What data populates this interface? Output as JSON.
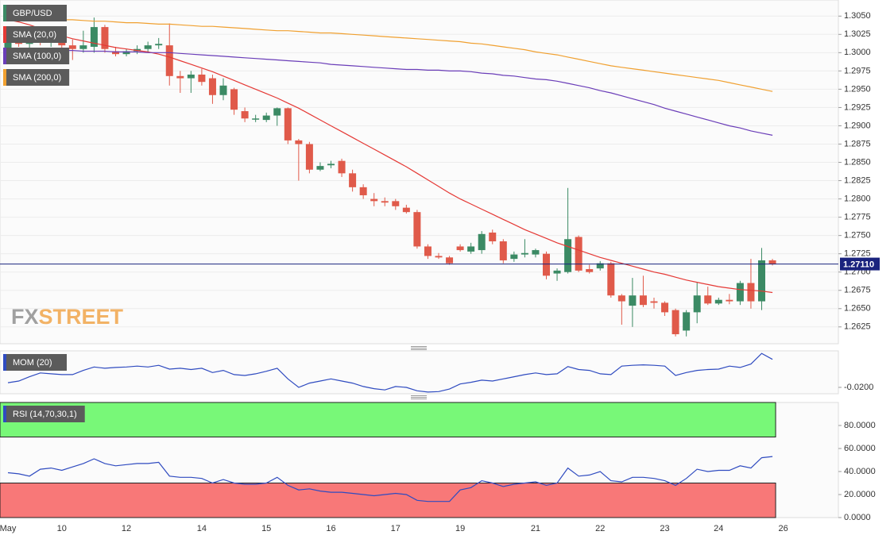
{
  "logo": {
    "fx": "FX",
    "street": "STREET"
  },
  "chart_data": [
    {
      "type": "candlestick",
      "categories": [
        "May",
        null,
        null,
        null,
        null,
        "10",
        null,
        null,
        null,
        null,
        null,
        "12",
        null,
        null,
        null,
        null,
        null,
        null,
        "14",
        null,
        null,
        null,
        null,
        null,
        "15",
        null,
        null,
        null,
        null,
        null,
        "16",
        null,
        null,
        null,
        null,
        null,
        "17",
        null,
        null,
        null,
        null,
        null,
        "19",
        null,
        null,
        null,
        null,
        null,
        null,
        "21",
        null,
        null,
        null,
        null,
        null,
        "22",
        null,
        null,
        null,
        null,
        null,
        "23",
        null,
        null,
        null,
        null,
        "24",
        null,
        null,
        null,
        null,
        null,
        "26"
      ],
      "series": [
        {
          "name": "GBP/USD",
          "up_color": "#3b8a64",
          "down_color": "#e05a4a",
          "open": [
            1.3005,
            1.3018,
            1.3012,
            1.302,
            1.3015,
            1.3022,
            1.301,
            1.3005,
            1.3008,
            1.3035,
            1.3002,
            1.2998,
            1.3002,
            1.3005,
            1.301,
            1.301,
            1.2968,
            1.2965,
            1.297,
            1.2965,
            1.2942,
            1.295,
            1.292,
            1.291,
            1.2908,
            1.2914,
            1.2924,
            1.288,
            1.2875,
            1.284,
            1.2846,
            1.2852,
            1.2835,
            1.2816,
            1.28,
            1.2797,
            1.2797,
            1.2788,
            1.2782,
            1.2735,
            1.2722,
            1.272,
            1.2735,
            1.2728,
            1.273,
            1.2754,
            1.2742,
            1.2718,
            1.2724,
            1.2724,
            1.2725,
            1.2698,
            1.27,
            1.2748,
            1.2704,
            1.2705,
            1.2712,
            1.2668,
            1.2654,
            1.2668,
            1.266,
            1.2658,
            1.2648,
            1.262,
            1.2645,
            1.2668,
            1.2657,
            1.2662,
            1.266,
            1.2685,
            1.266,
            1.2716,
            null
          ],
          "high": [
            1.3022,
            1.303,
            1.3025,
            1.3028,
            1.303,
            1.3028,
            1.3018,
            1.303,
            1.3048,
            1.3038,
            1.3008,
            1.3005,
            1.301,
            1.3015,
            1.302,
            1.304,
            1.2975,
            1.2975,
            1.2978,
            1.297,
            1.2965,
            1.2952,
            1.2925,
            1.2915,
            1.2918,
            1.2925,
            1.2925,
            1.2882,
            1.2878,
            1.285,
            1.2852,
            1.2855,
            1.284,
            1.282,
            1.2808,
            1.2802,
            1.28,
            1.2792,
            1.2785,
            1.2738,
            1.2726,
            1.2722,
            1.2738,
            1.274,
            1.2756,
            1.2758,
            1.2745,
            1.2728,
            1.2745,
            1.2732,
            1.2728,
            1.2705,
            1.2815,
            1.275,
            1.271,
            1.2715,
            1.2714,
            1.267,
            1.2692,
            1.2695,
            1.2665,
            1.266,
            1.265,
            1.2648,
            1.2686,
            1.268,
            1.2665,
            1.267,
            1.2688,
            1.2718,
            1.2733,
            1.2718,
            null
          ],
          "low": [
            1.3,
            1.3008,
            1.3005,
            1.301,
            1.3008,
            1.3,
            1.299,
            1.3,
            1.3,
            1.3,
            1.2995,
            1.2995,
            1.2998,
            1.3,
            1.3005,
            1.2955,
            1.2945,
            1.2945,
            1.2955,
            1.293,
            1.2935,
            1.2915,
            1.2905,
            1.2905,
            1.2905,
            1.29,
            1.2875,
            1.2825,
            1.2835,
            1.2838,
            1.2842,
            1.283,
            1.281,
            1.28,
            1.279,
            1.279,
            1.2785,
            1.278,
            1.2732,
            1.2718,
            1.2718,
            1.271,
            1.2728,
            1.2725,
            1.2725,
            1.2738,
            1.2712,
            1.2714,
            1.272,
            1.272,
            1.269,
            1.2688,
            1.2698,
            1.27,
            1.2698,
            1.2702,
            1.2665,
            1.2628,
            1.2625,
            1.2652,
            1.265,
            1.264,
            1.2612,
            1.2612,
            1.263,
            1.2655,
            1.2655,
            1.2656,
            1.2655,
            1.265,
            1.2648,
            1.2709,
            null
          ],
          "close": [
            1.3018,
            1.3012,
            1.302,
            1.3015,
            1.3022,
            1.301,
            1.3005,
            1.301,
            1.3035,
            1.3005,
            1.2998,
            1.3002,
            1.3005,
            1.301,
            1.3012,
            1.2968,
            1.2965,
            1.297,
            1.296,
            1.2942,
            1.2955,
            1.2922,
            1.291,
            1.291,
            1.2914,
            1.2924,
            1.288,
            1.2875,
            1.284,
            1.2845,
            1.2848,
            1.2835,
            1.2816,
            1.2805,
            1.2797,
            1.2795,
            1.279,
            1.2782,
            1.2735,
            1.2722,
            1.272,
            1.2712,
            1.273,
            1.2735,
            1.2752,
            1.2742,
            1.2716,
            1.2724,
            1.2726,
            1.273,
            1.2695,
            1.2702,
            1.2745,
            1.2702,
            1.27,
            1.2712,
            1.2668,
            1.266,
            1.2668,
            1.2655,
            1.2658,
            1.2645,
            1.2615,
            1.2645,
            1.2668,
            1.2657,
            1.2662,
            1.266,
            1.2685,
            1.266,
            1.2716,
            1.2711,
            null
          ]
        },
        {
          "name": "SMA (20,0)",
          "color": "#e53935",
          "values": [
            1.3045,
            1.3042,
            1.3038,
            1.3033,
            1.3028,
            1.3023,
            1.3019,
            1.3016,
            1.3013,
            1.301,
            1.3007,
            1.3005,
            1.3003,
            1.3001,
            1.2998,
            1.2994,
            1.2989,
            1.2984,
            1.2979,
            1.2974,
            1.2968,
            1.2962,
            1.2956,
            1.295,
            1.2944,
            1.2938,
            1.2931,
            1.2924,
            1.2916,
            1.2908,
            1.29,
            1.2892,
            1.2884,
            1.2876,
            1.2868,
            1.286,
            1.2852,
            1.2844,
            1.2835,
            1.2826,
            1.2817,
            1.2808,
            1.28,
            1.2793,
            1.2786,
            1.2779,
            1.2772,
            1.2765,
            1.2758,
            1.2752,
            1.2746,
            1.274,
            1.2735,
            1.273,
            1.2725,
            1.272,
            1.2716,
            1.2712,
            1.2708,
            1.2704,
            1.27,
            1.2697,
            1.2693,
            1.2689,
            1.2686,
            1.2683,
            1.268,
            1.2678,
            1.2676,
            1.2675,
            1.2674,
            1.2672,
            null
          ]
        },
        {
          "name": "SMA (100,0)",
          "color": "#6a3db8",
          "values": [
            1.3004,
            1.3004,
            1.3004,
            1.3004,
            1.3003,
            1.3003,
            1.3003,
            1.3002,
            1.3002,
            1.3002,
            1.3001,
            1.3001,
            1.3001,
            1.3,
            1.3,
            1.3,
            1.2999,
            1.2998,
            1.2997,
            1.2996,
            1.2995,
            1.2994,
            1.2993,
            1.2992,
            1.2991,
            1.299,
            1.2989,
            1.2988,
            1.2987,
            1.2986,
            1.2984,
            1.2983,
            1.2982,
            1.2981,
            1.298,
            1.2979,
            1.2978,
            1.2977,
            1.2977,
            1.2976,
            1.2976,
            1.2975,
            1.2975,
            1.2974,
            1.2972,
            1.2971,
            1.2969,
            1.2968,
            1.2966,
            1.2964,
            1.2963,
            1.2961,
            1.2958,
            1.2955,
            1.2952,
            1.2948,
            1.2945,
            1.2941,
            1.2937,
            1.2933,
            1.2929,
            1.2924,
            1.292,
            1.2916,
            1.2912,
            1.2908,
            1.2904,
            1.29,
            1.2897,
            1.2893,
            1.289,
            1.2887,
            null
          ]
        },
        {
          "name": "SMA (200,0)",
          "color": "#f0a030",
          "values": [
            1.3048,
            1.3047,
            1.3047,
            1.3046,
            1.3046,
            1.3045,
            1.3045,
            1.3044,
            1.3043,
            1.3043,
            1.3042,
            1.3041,
            1.3041,
            1.304,
            1.3039,
            1.3039,
            1.3038,
            1.3037,
            1.3036,
            1.3036,
            1.3035,
            1.3034,
            1.3033,
            1.3032,
            1.3031,
            1.303,
            1.303,
            1.3029,
            1.3028,
            1.3027,
            1.3027,
            1.3026,
            1.3025,
            1.3024,
            1.3023,
            1.3022,
            1.3021,
            1.302,
            1.3019,
            1.3018,
            1.3017,
            1.3016,
            1.3015,
            1.3013,
            1.3012,
            1.301,
            1.3008,
            1.3006,
            1.3004,
            1.3001,
            1.2999,
            1.2997,
            1.2994,
            1.2991,
            1.2988,
            1.2985,
            1.2982,
            1.298,
            1.2978,
            1.2976,
            1.2974,
            1.2972,
            1.297,
            1.2968,
            1.2966,
            1.2964,
            1.2962,
            1.2959,
            1.2956,
            1.2953,
            1.295,
            1.2947,
            null
          ]
        }
      ],
      "ylim": [
        1.2602,
        1.3072
      ],
      "yticks": [
        {
          "value": 1.2625,
          "label": "1.2625"
        },
        {
          "value": 1.265,
          "label": "1.2650"
        },
        {
          "value": 1.2675,
          "label": "1.2675"
        },
        {
          "value": 1.27,
          "label": "1.2700"
        },
        {
          "value": 1.2725,
          "label": "1.2725"
        },
        {
          "value": 1.275,
          "label": "1.2750"
        },
        {
          "value": 1.2775,
          "label": "1.2775"
        },
        {
          "value": 1.28,
          "label": "1.2800"
        },
        {
          "value": 1.2825,
          "label": "1.2825"
        },
        {
          "value": 1.285,
          "label": "1.2850"
        },
        {
          "value": 1.2875,
          "label": "1.2875"
        },
        {
          "value": 1.29,
          "label": "1.2900"
        },
        {
          "value": 1.2925,
          "label": "1.2925"
        },
        {
          "value": 1.295,
          "label": "1.2950"
        },
        {
          "value": 1.2975,
          "label": "1.2975"
        },
        {
          "value": 1.3,
          "label": "1.3000"
        },
        {
          "value": 1.3025,
          "label": "1.3025"
        },
        {
          "value": 1.305,
          "label": "1.3050"
        }
      ],
      "last_price": {
        "value": 1.2711,
        "label": "1.27110",
        "color": "#1a237e"
      },
      "grid": true
    },
    {
      "type": "line",
      "series": [
        {
          "name": "MOM (20)",
          "color": "#2f4bc0",
          "values": [
            -0.0189,
            -0.0185,
            -0.0175,
            -0.0166,
            -0.0168,
            -0.017,
            -0.017,
            -0.016,
            -0.0152,
            -0.0155,
            -0.0153,
            -0.0152,
            -0.015,
            -0.0152,
            -0.0148,
            -0.0157,
            -0.0155,
            -0.0158,
            -0.0155,
            -0.0165,
            -0.016,
            -0.017,
            -0.0172,
            -0.0168,
            -0.0162,
            -0.0155,
            -0.018,
            -0.02,
            -0.019,
            -0.0185,
            -0.018,
            -0.0185,
            -0.019,
            -0.0198,
            -0.0203,
            -0.0206,
            -0.0198,
            -0.02,
            -0.0208,
            -0.0211,
            -0.021,
            -0.0204,
            -0.0192,
            -0.0188,
            -0.0183,
            -0.0185,
            -0.018,
            -0.0175,
            -0.017,
            -0.0166,
            -0.017,
            -0.0168,
            -0.0151,
            -0.0158,
            -0.016,
            -0.0168,
            -0.017,
            -0.015,
            -0.0148,
            -0.0147,
            -0.0148,
            -0.015,
            -0.0172,
            -0.0165,
            -0.016,
            -0.0158,
            -0.0157,
            -0.015,
            -0.0153,
            -0.0145,
            -0.012,
            -0.0134,
            null
          ]
        }
      ],
      "ylim": [
        -0.0215,
        -0.0114
      ],
      "yticks": [
        {
          "value": -0.02,
          "label": "-0.0200"
        }
      ]
    },
    {
      "type": "line",
      "series": [
        {
          "name": "RSI (14,70,30,1)",
          "color": "#2f4bc0",
          "values": [
            39,
            38,
            36,
            42,
            43,
            41,
            44,
            47,
            51,
            47,
            45,
            46,
            47,
            47,
            48,
            36,
            35,
            35,
            34,
            30,
            33,
            30,
            29,
            29,
            30,
            35,
            28,
            24,
            25,
            23,
            22,
            22,
            21,
            20,
            19,
            20,
            21,
            20,
            15,
            14,
            14,
            14,
            24,
            26,
            32,
            30,
            27,
            29,
            30,
            31,
            28,
            30,
            43,
            36,
            37,
            40,
            32,
            31,
            35,
            35,
            34,
            32,
            28,
            34,
            42,
            40,
            41,
            41,
            45,
            43,
            52,
            53,
            null
          ]
        }
      ],
      "bands": [
        {
          "from": 70,
          "to": 100,
          "color": "#78f878"
        },
        {
          "from": 0,
          "to": 30,
          "color": "#f87878"
        }
      ],
      "ylim": [
        0,
        100
      ],
      "yticks": [
        {
          "value": 0,
          "label": "0.0000"
        },
        {
          "value": 20,
          "label": "20.0000"
        },
        {
          "value": 40,
          "label": "40.0000"
        },
        {
          "value": 60,
          "label": "60.0000"
        },
        {
          "value": 80,
          "label": "80.0000"
        }
      ]
    }
  ]
}
